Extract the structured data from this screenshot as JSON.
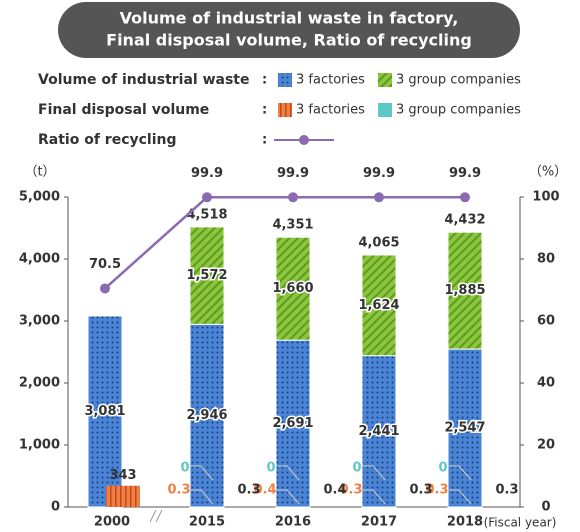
{
  "chart_data": {
    "type": "bar",
    "title": [
      "Volume of industrial waste in factory,",
      "Final disposal volume, Ratio of recycling"
    ],
    "legend_groups": [
      "Volume of industrial waste",
      "Final disposal volume",
      "Ratio of recycling"
    ],
    "legend_separator": ":",
    "ylabel": "（t）",
    "y2label": "（%）",
    "xlabel": "(Fiscal year)",
    "categories": [
      "2000",
      "2015",
      "2016",
      "2017",
      "2018"
    ],
    "ylim": [
      0,
      5000
    ],
    "yticks": [
      0,
      {
        "value": 1000,
        "label": "1,000"
      },
      {
        "value": 2000,
        "label": "2,000"
      },
      {
        "value": 3000,
        "label": "3,000"
      },
      {
        "value": 4000,
        "label": "4,000"
      },
      {
        "value": 5000,
        "label": "5,000"
      }
    ],
    "y2lim": [
      0,
      100
    ],
    "y2ticks": [
      0,
      20,
      40,
      60,
      80,
      100
    ],
    "series": [
      {
        "name": "3 factories",
        "group": 0,
        "stack": "waste",
        "color": "#4a84d6",
        "pattern": "dots",
        "values": [
          3081,
          2946,
          2691,
          2441,
          2547
        ],
        "value_labels": [
          "3,081",
          "2,946",
          "2,691",
          "2,441",
          "2,547"
        ]
      },
      {
        "name": "3 group companies",
        "group": 0,
        "stack": "waste",
        "color": "#8cc63f",
        "pattern": "hatch",
        "values": [
          null,
          1572,
          1660,
          1624,
          1885
        ],
        "value_labels": [
          null,
          "1,572",
          "1,660",
          "1,624",
          "1,885"
        ]
      },
      {
        "name": "3 factories",
        "group": 1,
        "stack": "disposal",
        "color": "#f07f45",
        "pattern": "stripes",
        "values": [
          343,
          0.3,
          0.4,
          0.3,
          0.3
        ]
      },
      {
        "name": "3 group companies",
        "group": 1,
        "stack": "disposal",
        "color": "#5cc9c6",
        "pattern": "solid",
        "values": [
          null,
          0,
          0,
          0,
          0
        ]
      },
      {
        "group": 2,
        "type": "line",
        "axis": "y2",
        "color": "#8a6bb1",
        "values": [
          70.5,
          99.9,
          99.9,
          99.9,
          99.9
        ]
      }
    ],
    "waste_totals": {
      "values": [
        null,
        4518,
        4351,
        4065,
        4432
      ],
      "value_labels": [
        null,
        "4,518",
        "4,351",
        "4,065",
        "4,432"
      ]
    },
    "disposal_totals": {
      "values": [
        null,
        0.3,
        0.4,
        0.3,
        0.3
      ]
    }
  }
}
